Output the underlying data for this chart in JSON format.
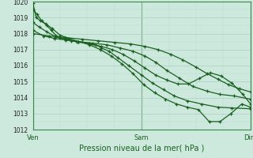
{
  "xlabel": "Pression niveau de la mer( hPa )",
  "ylim": [
    1012,
    1020
  ],
  "yticks": [
    1012,
    1013,
    1014,
    1015,
    1016,
    1017,
    1018,
    1019,
    1020
  ],
  "xtick_labels": [
    "Ven",
    "Sam",
    "Dim"
  ],
  "xtick_positions": [
    0,
    1,
    2
  ],
  "xlim": [
    0,
    2
  ],
  "bg_color": "#cde8dc",
  "grid_major_color": "#a8cfbf",
  "grid_minor_color": "#b8ddd0",
  "line_color": "#1a6020",
  "marker": "+",
  "markersize": 3.5,
  "linewidth": 0.9,
  "lines": [
    {
      "x": [
        0.0,
        0.04,
        0.08,
        0.13,
        0.17,
        0.21,
        0.25,
        0.3,
        0.35,
        0.42,
        0.52,
        0.58,
        0.63,
        0.7,
        0.78,
        0.88,
        1.0,
        1.1,
        1.2,
        1.3,
        1.42,
        1.55,
        1.7,
        1.83,
        2.0
      ],
      "y": [
        1019.5,
        1019.2,
        1018.8,
        1018.5,
        1018.2,
        1017.9,
        1017.75,
        1017.65,
        1017.55,
        1017.5,
        1017.4,
        1017.3,
        1017.1,
        1016.9,
        1016.5,
        1016.0,
        1015.4,
        1014.9,
        1014.5,
        1014.1,
        1013.8,
        1013.6,
        1013.4,
        1013.35,
        1013.3
      ]
    },
    {
      "x": [
        0.0,
        0.03,
        0.07,
        0.12,
        0.18,
        0.25,
        0.33,
        0.42,
        0.52,
        0.62,
        0.72,
        0.82,
        0.92,
        1.02,
        1.12,
        1.22,
        1.32,
        1.42,
        1.52,
        1.62,
        1.72,
        1.82,
        1.92,
        2.0
      ],
      "y": [
        1019.9,
        1019.0,
        1018.8,
        1018.6,
        1018.3,
        1017.9,
        1017.7,
        1017.5,
        1017.3,
        1017.0,
        1016.6,
        1016.1,
        1015.5,
        1014.8,
        1014.3,
        1013.9,
        1013.6,
        1013.4,
        1013.25,
        1012.5,
        1012.5,
        1013.0,
        1013.6,
        1013.4
      ]
    },
    {
      "x": [
        0.0,
        0.06,
        0.13,
        0.21,
        0.3,
        0.4,
        0.52,
        0.63,
        0.73,
        0.83,
        0.93,
        1.03,
        1.13,
        1.23,
        1.33,
        1.43,
        1.53,
        1.63,
        1.73,
        1.83,
        1.93,
        2.0
      ],
      "y": [
        1018.7,
        1018.4,
        1018.1,
        1017.8,
        1017.65,
        1017.5,
        1017.35,
        1017.2,
        1017.0,
        1016.7,
        1016.3,
        1015.85,
        1015.4,
        1015.1,
        1014.85,
        1014.85,
        1015.2,
        1015.55,
        1015.35,
        1014.9,
        1014.2,
        1013.6
      ]
    },
    {
      "x": [
        0.0,
        0.1,
        0.2,
        0.3,
        0.42,
        0.55,
        0.68,
        0.8,
        0.92,
        1.03,
        1.13,
        1.23,
        1.35,
        1.47,
        1.6,
        1.72,
        1.85,
        2.0
      ],
      "y": [
        1018.2,
        1017.85,
        1017.7,
        1017.6,
        1017.5,
        1017.4,
        1017.3,
        1017.1,
        1016.9,
        1016.6,
        1016.2,
        1015.7,
        1015.2,
        1014.7,
        1014.4,
        1014.2,
        1014.1,
        1013.9
      ]
    },
    {
      "x": [
        0.0,
        0.15,
        0.3,
        0.45,
        0.6,
        0.75,
        0.9,
        1.03,
        1.15,
        1.27,
        1.38,
        1.5,
        1.6,
        1.7,
        1.8,
        1.9,
        2.0
      ],
      "y": [
        1018.0,
        1017.85,
        1017.75,
        1017.65,
        1017.55,
        1017.45,
        1017.35,
        1017.2,
        1017.0,
        1016.7,
        1016.35,
        1015.9,
        1015.5,
        1015.15,
        1014.8,
        1014.55,
        1014.35
      ]
    }
  ]
}
